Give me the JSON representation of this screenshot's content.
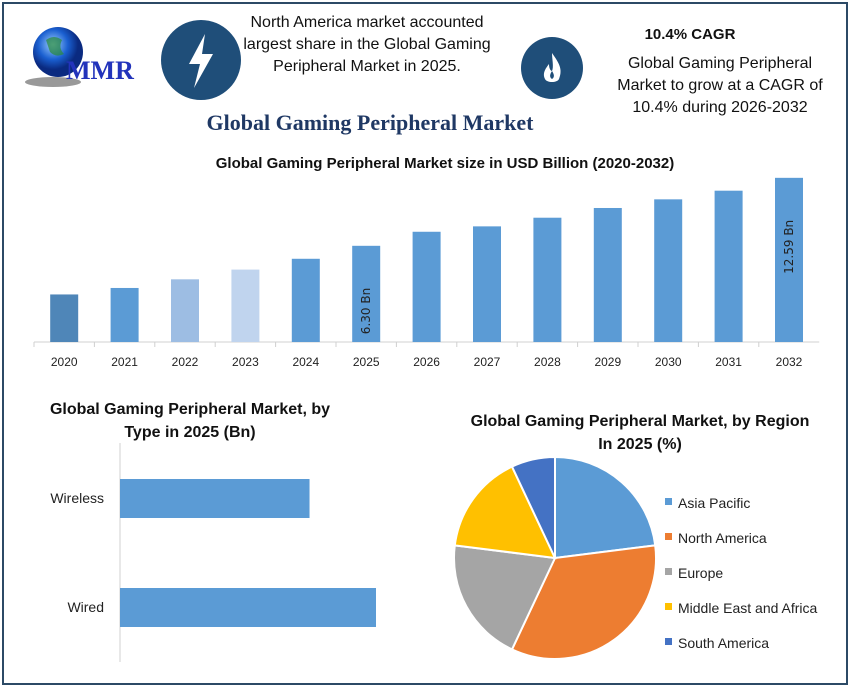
{
  "logo": {
    "text": "MMR"
  },
  "header": {
    "north_america_note": "North America market accounted largest share in the Global Gaming Peripheral Market in 2025.",
    "cagr_title": "10.4% CAGR",
    "cagr_note": "Global Gaming Peripheral Market to grow at a CAGR of 10.4% during 2026-2032",
    "main_title": "Global Gaming Peripheral Market",
    "icons": [
      "lightning-icon",
      "flame-icon"
    ],
    "icon_color": "#1f4e79",
    "title_color": "#1f3864"
  },
  "chart_data": [
    {
      "type": "bar",
      "title": "Global Gaming Peripheral Market size in USD Billion (2020-2032)",
      "categories": [
        "2020",
        "2021",
        "2022",
        "2023",
        "2024",
        "2025",
        "2026",
        "2027",
        "2028",
        "2029",
        "2030",
        "2031",
        "2032"
      ],
      "values": [
        1.8,
        2.4,
        3.2,
        4.1,
        5.1,
        6.3,
        7.6,
        8.1,
        8.9,
        9.8,
        10.6,
        11.4,
        12.59
      ],
      "colors": [
        "#4f86b8",
        "#5b9bd5",
        "#9dbde3",
        "#c0d4ee",
        "#5b9bd5",
        "#5b9bd5",
        "#5b9bd5",
        "#5b9bd5",
        "#5b9bd5",
        "#5b9bd5",
        "#5b9bd5",
        "#5b9bd5",
        "#5b9bd5"
      ],
      "data_labels": {
        "2025": "6.30 Bn",
        "2032": "12.59 Bn"
      },
      "ylim": [
        -2.6,
        13.5
      ],
      "grid": false
    },
    {
      "type": "bar",
      "orientation": "horizontal",
      "title": "Global Gaming Peripheral Market, by Type in 2025 (Bn)",
      "categories": [
        "Wireless",
        "Wired"
      ],
      "values": [
        2.68,
        3.62
      ],
      "color": "#5b9bd5",
      "xlim": [
        0,
        4.2
      ]
    },
    {
      "type": "pie",
      "title": "Global Gaming Peripheral Market, by Region In 2025 (%)",
      "categories": [
        "Asia Pacific",
        "North America",
        "Europe",
        "Middle East and Africa",
        "South America"
      ],
      "values": [
        23,
        34,
        20,
        16,
        7
      ],
      "colors": [
        "#5b9bd5",
        "#ed7d31",
        "#a5a5a5",
        "#ffc000",
        "#4472c4"
      ],
      "legend": "right"
    }
  ]
}
